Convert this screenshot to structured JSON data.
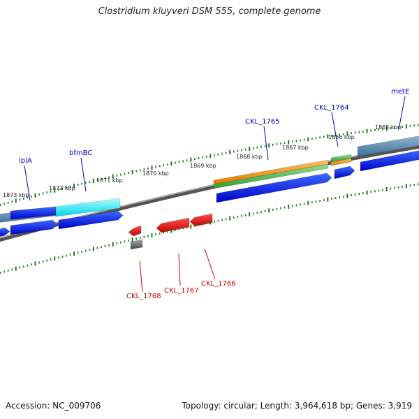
{
  "title": "Clostridium kluyveri DSM 555, complete genome",
  "footer": {
    "accession": "Accession: NC_009706",
    "summary": "Topology: circular; Length: 3,964,618 bp; Genes: 3,919"
  },
  "colors": {
    "backbone": "#808080",
    "cds_forward": "#0000ee",
    "cds_reverse": "#ee0000",
    "cyan_feature": "#00eeee",
    "orange_feature": "#ff9900",
    "green_feature": "#44bb44",
    "steelblue_feature": "#4a7fa8",
    "gray_feature": "#555555",
    "tick": "#1a7a1a",
    "forward_label": "#0000cc",
    "reverse_label": "#cc0000"
  },
  "axis_labels": [
    "1873 kbp",
    "1872 kbp",
    "1871 kbp",
    "1870 kbp",
    "1869 kbp",
    "1868 kbp",
    "1867 kbp",
    "1866 kbp",
    "1865 kbp"
  ],
  "forward_labels": [
    "lplA",
    "bfmBC",
    "CKL_1765",
    "CKL_1764",
    "metE"
  ],
  "reverse_labels": [
    "CKL_1768",
    "CKL_1767",
    "CKL_1766"
  ]
}
